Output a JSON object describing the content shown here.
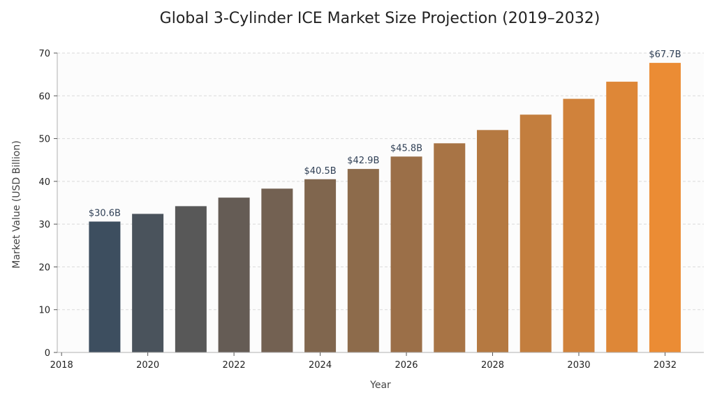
{
  "chart_data": {
    "type": "bar",
    "title": "Global 3-Cylinder ICE Market Size Projection (2019–2032)",
    "xlabel": "Year",
    "ylabel": "Market Value (USD Billion)",
    "x": [
      2019,
      2020,
      2021,
      2022,
      2023,
      2024,
      2025,
      2026,
      2027,
      2028,
      2029,
      2030,
      2031,
      2032
    ],
    "values": [
      30.6,
      32.4,
      34.2,
      36.2,
      38.3,
      40.5,
      42.9,
      45.8,
      48.9,
      52.0,
      55.6,
      59.3,
      63.3,
      67.7
    ],
    "data_labels": [
      {
        "x": 2019,
        "text": "$30.6B"
      },
      {
        "x": 2024,
        "text": "$40.5B"
      },
      {
        "x": 2025,
        "text": "$42.9B"
      },
      {
        "x": 2026,
        "text": "$45.8B"
      },
      {
        "x": 2032,
        "text": "$67.7B"
      }
    ],
    "xlim": [
      2017.9,
      2032.9
    ],
    "ylim": [
      0,
      70
    ],
    "x_ticks": [
      2018,
      2020,
      2022,
      2024,
      2026,
      2028,
      2030,
      2032
    ],
    "y_ticks": [
      0,
      10,
      20,
      30,
      40,
      50,
      60,
      70
    ],
    "grid": true,
    "legend": "none",
    "colors": {
      "start": "#3d4e5f",
      "end": "#eb8c34",
      "plot_background": "#fcfcfc"
    }
  }
}
